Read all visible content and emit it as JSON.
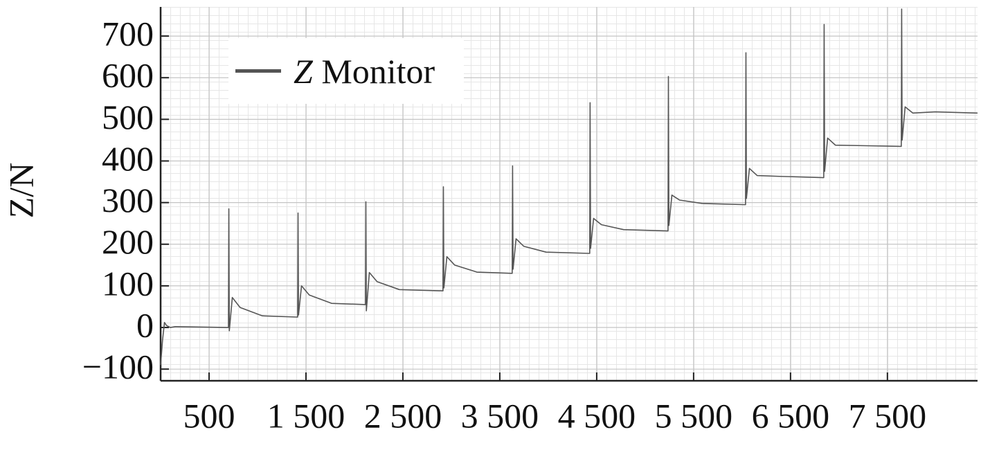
{
  "chart_data": {
    "type": "line",
    "ylabel": "Z/N",
    "xlim": [
      0,
      8430
    ],
    "ylim": [
      -128,
      770
    ],
    "xticks": [
      500,
      {
        "value": 1500,
        "label": "1 500"
      },
      {
        "value": 2500,
        "label": "2 500"
      },
      {
        "value": 3500,
        "label": "3 500"
      },
      {
        "value": 4500,
        "label": "4 500"
      },
      {
        "value": 5500,
        "label": "5 500"
      },
      {
        "value": 6500,
        "label": "6 500"
      },
      {
        "value": 7500,
        "label": "7 500"
      }
    ],
    "yticks": [
      {
        "value": -100,
        "label": "−100"
      },
      0,
      100,
      200,
      300,
      400,
      500,
      600,
      700
    ],
    "grid": true,
    "legend": "upper left",
    "series": [
      {
        "name": "Z Monitor",
        "color": "#555555",
        "x": [
          0,
          20,
          40,
          60,
          100,
          150,
          696,
          700,
          704,
          709,
          740,
          820,
          1050,
          1410,
          1414,
          1418,
          1423,
          1454,
          1534,
          1764,
          2110,
          2114,
          2118,
          2123,
          2154,
          2234,
          2464,
          2910,
          2914,
          2918,
          2923,
          2954,
          3034,
          3264,
          3624,
          3628,
          3632,
          3637,
          3668,
          3748,
          3978,
          4424,
          4428,
          4432,
          4437,
          4468,
          4548,
          4778,
          5232,
          5236,
          5240,
          5245,
          5276,
          5356,
          5586,
          6032,
          6036,
          6040,
          6045,
          6076,
          6156,
          6386,
          6839,
          6843,
          6847,
          6852,
          6883,
          6963,
          7193,
          7639,
          7643,
          7647,
          7652,
          7683,
          7763,
          7993,
          8430
        ],
        "values": [
          -90,
          -30,
          12,
          5,
          0,
          2,
          0,
          0,
          285,
          -8,
          72,
          48,
          28,
          25,
          25,
          275,
          30,
          100,
          78,
          58,
          55,
          55,
          302,
          40,
          132,
          110,
          91,
          88,
          88,
          338,
          95,
          170,
          150,
          133,
          130,
          130,
          388,
          140,
          213,
          195,
          181,
          178,
          178,
          540,
          190,
          262,
          247,
          235,
          232,
          232,
          603,
          245,
          318,
          306,
          298,
          295,
          295,
          660,
          310,
          382,
          365,
          363,
          360,
          360,
          728,
          375,
          455,
          438,
          437,
          435,
          435,
          765,
          450,
          530,
          515,
          518,
          515
        ]
      }
    ]
  }
}
